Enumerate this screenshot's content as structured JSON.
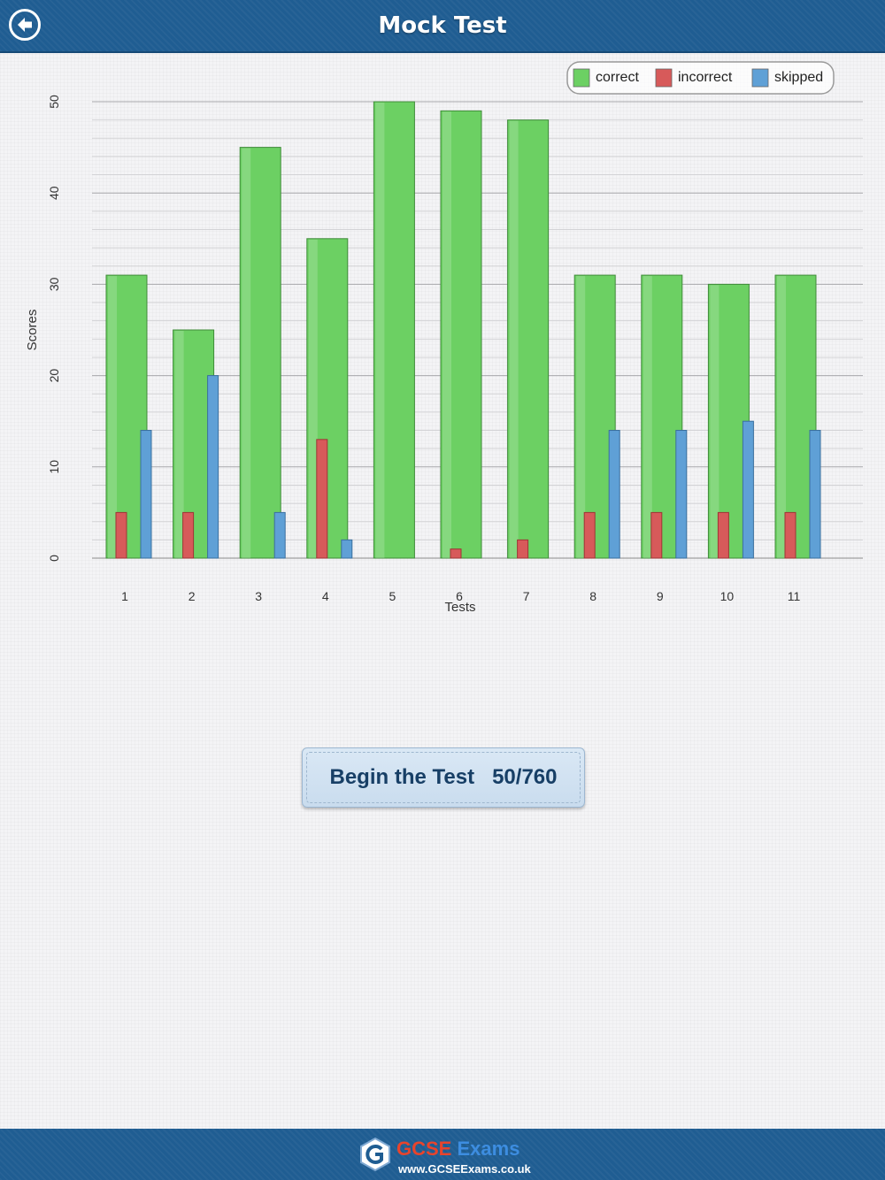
{
  "header": {
    "title": "Mock Test",
    "back_icon": "back-arrow-icon"
  },
  "chart_data": {
    "type": "bar",
    "xlabel": "Tests",
    "ylabel": "Scores",
    "ylim": [
      0,
      50
    ],
    "y_ticks": [
      0,
      10,
      20,
      30,
      40,
      50
    ],
    "categories": [
      "1",
      "2",
      "3",
      "4",
      "5",
      "6",
      "7",
      "8",
      "9",
      "10",
      "11"
    ],
    "series": [
      {
        "name": "correct",
        "color": "#6cd063",
        "values": [
          31,
          25,
          45,
          35,
          50,
          49,
          48,
          31,
          31,
          30,
          31
        ]
      },
      {
        "name": "incorrect",
        "color": "#d75a5a",
        "values": [
          5,
          5,
          0,
          13,
          0,
          1,
          2,
          5,
          5,
          5,
          5
        ]
      },
      {
        "name": "skipped",
        "color": "#5fa0d6",
        "values": [
          14,
          20,
          5,
          2,
          0,
          0,
          0,
          14,
          14,
          15,
          14
        ]
      }
    ],
    "grid": true,
    "legend_position": "top-right"
  },
  "action": {
    "begin_label": "Begin the Test   50/760"
  },
  "footer": {
    "brand_primary": "GCSE",
    "brand_secondary": "Exams",
    "url": "www.GCSEExams.co.uk",
    "colors": {
      "primary": "#e8442c",
      "secondary": "#3d8de0"
    }
  }
}
